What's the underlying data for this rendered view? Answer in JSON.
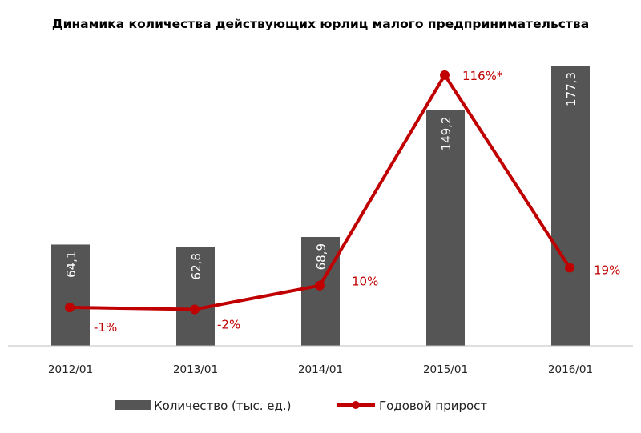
{
  "chart_data": {
    "type": "bar+line",
    "title": "Динамика количества действующих юрлиц малого  предпринимательства",
    "categories": [
      "2012/01",
      "2013/01",
      "2014/01",
      "2015/01",
      "2016/01"
    ],
    "series": [
      {
        "name": "Количество (тыс. ед.)",
        "type": "bar",
        "values": [
          64.1,
          62.8,
          68.9,
          149.2,
          177.3
        ],
        "labels": [
          "64,1",
          "62,8",
          "68,9",
          "149,2",
          "177,3"
        ],
        "color": "#555555"
      },
      {
        "name": "Годовой прирост",
        "type": "line",
        "values": [
          -1,
          -2,
          10,
          116,
          19
        ],
        "labels": [
          "-1%",
          "-2%",
          "10%",
          "116%*",
          "19%"
        ],
        "color": "#c00000"
      }
    ],
    "legend": "bottom",
    "grid": false
  }
}
